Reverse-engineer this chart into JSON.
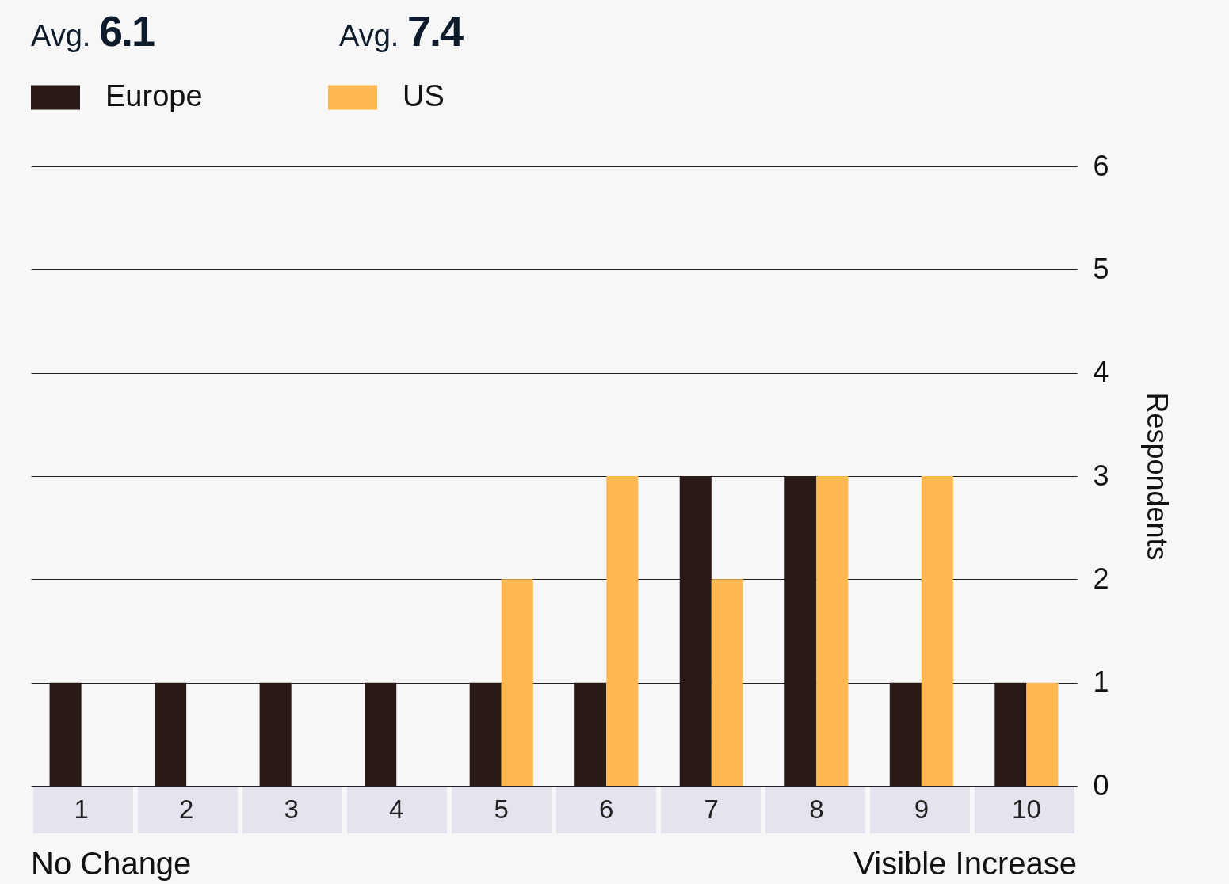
{
  "chart_data": {
    "type": "bar",
    "ylabel": "Respondents",
    "categories": [
      "1",
      "2",
      "3",
      "4",
      "5",
      "6",
      "7",
      "8",
      "9",
      "10"
    ],
    "series": [
      {
        "name": "Europe",
        "color": "#2a1a17",
        "values": [
          1,
          1,
          1,
          1,
          1,
          1,
          3,
          3,
          1,
          1
        ]
      },
      {
        "name": "US",
        "color": "#ffb950",
        "values": [
          null,
          null,
          null,
          null,
          2,
          3,
          2,
          3,
          3,
          1
        ]
      }
    ],
    "ylim": [
      0,
      6
    ],
    "yticks": [
      0,
      1,
      2,
      3,
      4,
      5,
      6
    ],
    "grid": "y",
    "legend": "top left",
    "annotations": [
      "Avg. 6.1",
      "Avg. 7.4",
      "No Change",
      "Visible Increase"
    ]
  }
}
